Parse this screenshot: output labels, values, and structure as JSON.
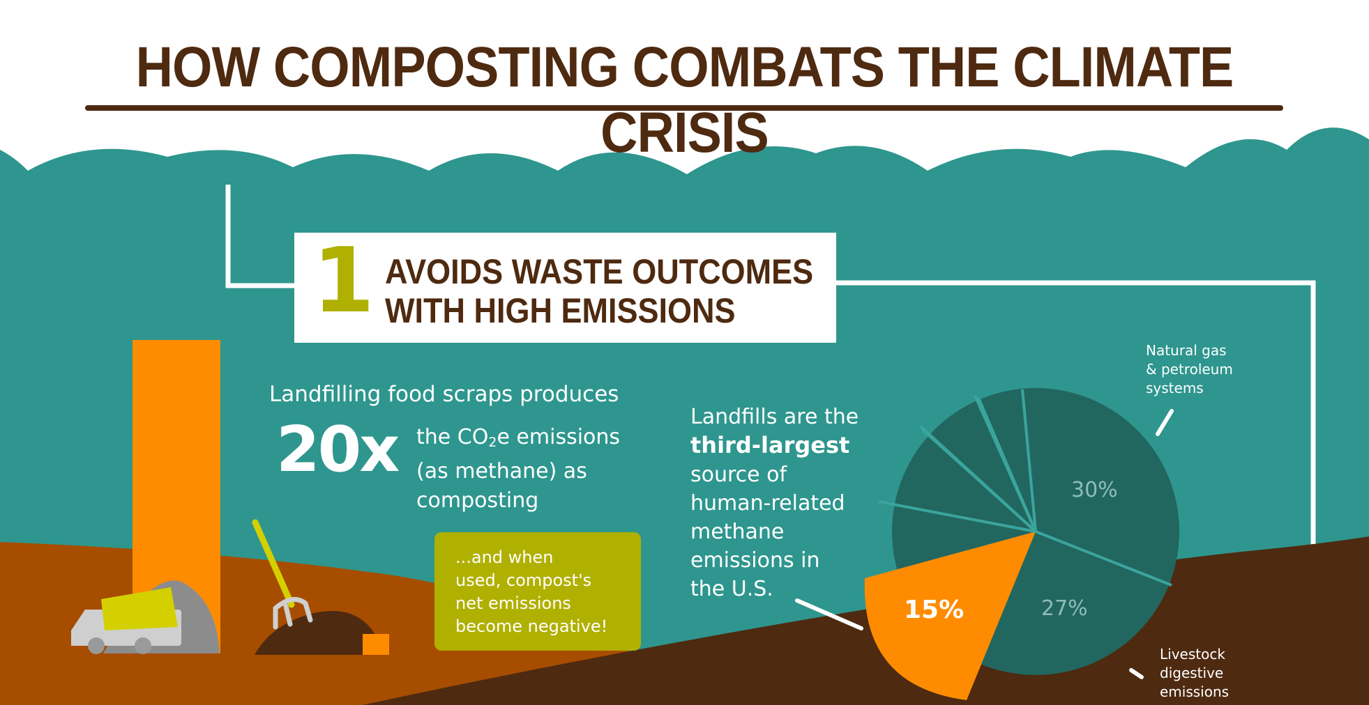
{
  "title": "HOW COMPOSTING COMBATS THE CLIMATE CRISIS",
  "section1": {
    "number": "1",
    "title_line1": "AVOIDS WASTE OUTCOMES",
    "title_line2": "WITH HIGH EMISSIONS"
  },
  "stat": {
    "intro": "Landfilling food scraps produces",
    "multiplier": "20x",
    "line1_prefix": "the CO",
    "line1_sub": "2",
    "line1_suffix": "e emissions",
    "line2": "(as methane) as",
    "line3": "composting"
  },
  "callout": {
    "line1": "...and when",
    "line2": "used, compost's",
    "line3": "net emissions",
    "line4": "become negative!"
  },
  "landfills_text": {
    "line1": "Landfills are the",
    "bold": "third-largest",
    "line3": "source of",
    "line4": "human-related",
    "line5": "methane",
    "line6": "emissions in",
    "line7": "the U.S."
  },
  "pie": {
    "label_gas": [
      "Natural gas",
      "& petroleum",
      "systems"
    ],
    "label_livestock": [
      "Livestock",
      "digestive",
      "emissions"
    ],
    "pct_gas": "30%",
    "pct_livestock": "27%",
    "pct_landfills": "15%"
  },
  "colors": {
    "teal": "#2e968e",
    "dark_teal": "#226660",
    "brown": "#4e2a10",
    "orange": "#ff8c00",
    "olive": "#b0b000",
    "rust": "#a64d00"
  },
  "icons": [
    "cloud-shape",
    "chimney-illustration",
    "truck-icon",
    "pitchfork-icon",
    "compost-pile-icon"
  ]
}
